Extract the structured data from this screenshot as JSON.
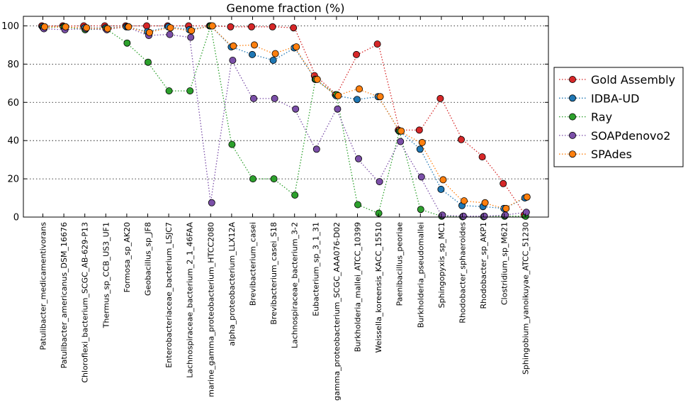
{
  "chart_data": {
    "type": "line",
    "title": "Genome fraction (%)",
    "xlabel": "",
    "ylabel": "",
    "ylim": [
      0,
      105
    ],
    "yticks": [
      0,
      20,
      40,
      60,
      80,
      100
    ],
    "grid": "y dotted",
    "legend_position": "right, outside plot",
    "categories": [
      "Patulibacter_medicamentivorans",
      "Patulibacter_americanus_DSM_16676",
      "Chloroflexi_bacterium_SCGC_AB-629-P13",
      "Thermus_sp_CCB_US3_UF1",
      "Formosa_sp_AK20",
      "Geobacillus_sp_JF8",
      "Enterobacteriaceae_bacterium_LSJC7",
      "Lachnospiraceae_bacterium_2_1_46FAA",
      "marine_gamma_proteobacterium_HTCC2080",
      "alpha_proteobacterium_LLX12A",
      "Brevibacterium_casei",
      "Brevibacterium_casei_S18",
      "Lachnospiraceae_bacterium_3-2",
      "Eubacterium_sp_3_1_31",
      "gamma_proteobacterium_SCGC_AAA076-D02",
      "Burkholderia_mallei_ATCC_10399",
      "Weissella_koreensis_KACC_15510",
      "Paenibacillus_peoriae",
      "Burkholderia_pseudomallei",
      "Sphingopyxis_sp_MC1",
      "Rhodobacter_sphaeroides",
      "Rhodobacter_sp_AKP1",
      "Clostridium_sp_M621",
      "Sphingobium_yanoikuyae_ATCC_51230"
    ],
    "series": [
      {
        "name": "Gold Assembly",
        "color": "#d62728",
        "values": [
          100,
          100,
          100,
          100,
          100,
          100,
          100,
          100,
          100,
          99.5,
          99.5,
          99.5,
          99,
          74,
          64,
          85,
          90.5,
          45.5,
          45.5,
          62,
          40.5,
          31.5,
          17.5,
          1
        ]
      },
      {
        "name": "IDBA-UD",
        "color": "#1f77b4",
        "values": [
          99.5,
          99.5,
          99,
          99,
          99.5,
          97,
          99.5,
          98,
          100,
          89,
          85,
          82,
          88.5,
          72,
          63.5,
          61.5,
          63,
          45,
          35.5,
          14.5,
          6,
          5.5,
          4.5,
          10
        ]
      },
      {
        "name": "Ray",
        "color": "#2ca02c",
        "values": [
          99,
          99.5,
          98,
          98.5,
          91,
          81,
          66,
          66,
          100,
          38,
          20,
          20,
          11.5,
          72,
          64,
          6.5,
          2,
          45,
          4,
          0.5,
          0.2,
          0.2,
          0.5,
          0.5
        ]
      },
      {
        "name": "SOAPdenovo2",
        "color": "#7b4fa8",
        "values": [
          98.5,
          98,
          98.5,
          98,
          99.5,
          95,
          95.5,
          94,
          7.5,
          82,
          62,
          62,
          56.5,
          35.5,
          56.5,
          30.5,
          18.5,
          39.5,
          21,
          1,
          0.5,
          0.5,
          1,
          2.5
        ]
      },
      {
        "name": "SPAdes",
        "color": "#ff7f0e",
        "values": [
          99.5,
          99.5,
          99,
          98.5,
          99.5,
          96.5,
          99,
          97.5,
          100,
          89.5,
          90,
          85.5,
          89,
          72,
          63.5,
          67,
          63,
          45,
          39,
          19.5,
          8.5,
          7.5,
          4.5,
          10.5
        ]
      }
    ]
  }
}
